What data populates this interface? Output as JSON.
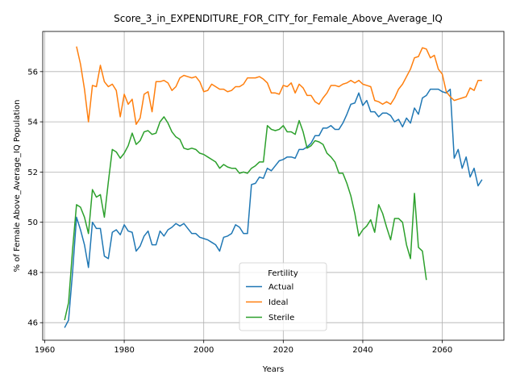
{
  "chart_data": {
    "type": "line",
    "title": "Score_3_in_EXPENDITURE_FOR_CITY_for_Female_Above_Average_IQ",
    "xlabel": "Years",
    "ylabel": "% of Female Above_Average_IQ Population",
    "xlim": [
      1959.5,
      2075.5
    ],
    "ylim": [
      45.3,
      57.6
    ],
    "xticks": [
      1960,
      1980,
      2000,
      2020,
      2040,
      2060
    ],
    "yticks": [
      46,
      48,
      50,
      52,
      54,
      56
    ],
    "grid": true,
    "legend": {
      "title": "Fertility",
      "placement": "bottom-center"
    },
    "series": [
      {
        "name": "Actual",
        "color": "#1f77b4",
        "x": [
          1965,
          1966,
          1967,
          1968,
          1969,
          1970,
          1971,
          1972,
          1973,
          1974,
          1975,
          1976,
          1977,
          1978,
          1979,
          1980,
          1981,
          1982,
          1983,
          1984,
          1985,
          1986,
          1987,
          1988,
          1989,
          1990,
          1991,
          1992,
          1993,
          1994,
          1995,
          1996,
          1997,
          1998,
          1999,
          2000,
          2001,
          2002,
          2003,
          2004,
          2005,
          2006,
          2007,
          2008,
          2009,
          2010,
          2011,
          2012,
          2013,
          2014,
          2015,
          2016,
          2017,
          2018,
          2019,
          2020,
          2021,
          2022,
          2023,
          2024,
          2025,
          2026,
          2027,
          2028,
          2029,
          2030,
          2031,
          2032,
          2033,
          2034,
          2035,
          2036,
          2037,
          2038,
          2039,
          2040,
          2041,
          2042,
          2043,
          2044,
          2045,
          2046,
          2047,
          2048,
          2049,
          2050,
          2051,
          2052,
          2053,
          2054,
          2055,
          2056,
          2057,
          2058,
          2059,
          2060,
          2061,
          2062,
          2063,
          2064,
          2065,
          2066,
          2067,
          2068,
          2069,
          2070
        ],
        "values": [
          45.8,
          46.1,
          48.0,
          50.2,
          49.7,
          49.1,
          48.2,
          50.0,
          49.75,
          49.75,
          48.65,
          48.55,
          49.6,
          49.7,
          49.5,
          49.9,
          49.65,
          49.6,
          48.85,
          49.05,
          49.45,
          49.65,
          49.1,
          49.1,
          49.65,
          49.45,
          49.7,
          49.8,
          49.95,
          49.85,
          49.95,
          49.75,
          49.55,
          49.55,
          49.4,
          49.35,
          49.3,
          49.2,
          49.1,
          48.85,
          49.4,
          49.45,
          49.55,
          49.9,
          49.8,
          49.55,
          49.55,
          51.5,
          51.55,
          51.8,
          51.75,
          52.15,
          52.05,
          52.25,
          52.45,
          52.5,
          52.6,
          52.6,
          52.55,
          52.9,
          52.9,
          53.0,
          53.15,
          53.45,
          53.45,
          53.75,
          53.75,
          53.85,
          53.7,
          53.7,
          53.95,
          54.3,
          54.7,
          54.75,
          55.15,
          54.65,
          54.85,
          54.4,
          54.4,
          54.2,
          54.35,
          54.35,
          54.25,
          54.0,
          54.1,
          53.8,
          54.15,
          53.95,
          54.55,
          54.3,
          54.95,
          55.05,
          55.3,
          55.3,
          55.3,
          55.2,
          55.15,
          55.3,
          52.55,
          52.9,
          52.15,
          52.6,
          51.8,
          52.15,
          51.45,
          51.7
        ]
      },
      {
        "name": "Ideal",
        "color": "#ff7f0e",
        "x": [
          1968,
          1969,
          1970,
          1971,
          1972,
          1973,
          1974,
          1975,
          1976,
          1977,
          1978,
          1979,
          1980,
          1981,
          1982,
          1983,
          1984,
          1985,
          1986,
          1987,
          1988,
          1989,
          1990,
          1991,
          1992,
          1993,
          1994,
          1995,
          1996,
          1997,
          1998,
          1999,
          2000,
          2001,
          2002,
          2003,
          2004,
          2005,
          2006,
          2007,
          2008,
          2009,
          2010,
          2011,
          2012,
          2013,
          2014,
          2015,
          2016,
          2017,
          2018,
          2019,
          2020,
          2021,
          2022,
          2023,
          2024,
          2025,
          2026,
          2027,
          2028,
          2029,
          2030,
          2031,
          2032,
          2033,
          2034,
          2035,
          2036,
          2037,
          2038,
          2039,
          2040,
          2041,
          2042,
          2043,
          2044,
          2045,
          2046,
          2047,
          2048,
          2049,
          2050,
          2051,
          2052,
          2053,
          2054,
          2055,
          2056,
          2057,
          2058,
          2059,
          2060,
          2061,
          2062,
          2063,
          2064,
          2065,
          2066,
          2067,
          2068,
          2069,
          2070
        ],
        "values": [
          57.0,
          56.3,
          55.3,
          54.0,
          55.45,
          55.4,
          56.25,
          55.6,
          55.4,
          55.5,
          55.25,
          54.2,
          55.1,
          54.7,
          54.9,
          53.9,
          54.15,
          55.1,
          55.2,
          54.4,
          55.6,
          55.6,
          55.65,
          55.55,
          55.25,
          55.4,
          55.75,
          55.85,
          55.8,
          55.75,
          55.8,
          55.6,
          55.2,
          55.25,
          55.5,
          55.4,
          55.3,
          55.3,
          55.2,
          55.25,
          55.4,
          55.4,
          55.5,
          55.75,
          55.75,
          55.75,
          55.8,
          55.7,
          55.55,
          55.15,
          55.15,
          55.1,
          55.45,
          55.4,
          55.55,
          55.15,
          55.5,
          55.35,
          55.05,
          55.05,
          54.8,
          54.7,
          54.95,
          55.15,
          55.45,
          55.45,
          55.4,
          55.5,
          55.55,
          55.65,
          55.55,
          55.65,
          55.5,
          55.45,
          55.4,
          54.85,
          54.8,
          54.7,
          54.8,
          54.7,
          54.95,
          55.3,
          55.5,
          55.8,
          56.1,
          56.55,
          56.6,
          56.95,
          56.9,
          56.55,
          56.65,
          56.1,
          55.9,
          55.2,
          55.0,
          54.85,
          54.9,
          54.95,
          55.0,
          55.35,
          55.25,
          55.65,
          55.65
        ]
      },
      {
        "name": "Sterile",
        "color": "#2ca02c",
        "x": [
          1965,
          1966,
          1967,
          1968,
          1969,
          1970,
          1971,
          1972,
          1973,
          1974,
          1975,
          1976,
          1977,
          1978,
          1979,
          1980,
          1981,
          1982,
          1983,
          1984,
          1985,
          1986,
          1987,
          1988,
          1989,
          1990,
          1991,
          1992,
          1993,
          1994,
          1995,
          1996,
          1997,
          1998,
          1999,
          2000,
          2001,
          2002,
          2003,
          2004,
          2005,
          2006,
          2007,
          2008,
          2009,
          2010,
          2011,
          2012,
          2013,
          2014,
          2015,
          2016,
          2017,
          2018,
          2019,
          2020,
          2021,
          2022,
          2023,
          2024,
          2025,
          2026,
          2027,
          2028,
          2029,
          2030,
          2031,
          2032,
          2033,
          2034,
          2035,
          2036,
          2037,
          2038,
          2039,
          2040,
          2041,
          2042,
          2043,
          2044,
          2045,
          2046,
          2047,
          2048,
          2049,
          2050,
          2051,
          2052,
          2053,
          2054,
          2055,
          2056
        ],
        "values": [
          46.1,
          46.8,
          48.9,
          50.7,
          50.6,
          50.2,
          49.55,
          51.3,
          51.0,
          51.1,
          50.2,
          51.6,
          52.9,
          52.8,
          52.55,
          52.75,
          53.05,
          53.55,
          53.1,
          53.25,
          53.6,
          53.65,
          53.5,
          53.55,
          54.0,
          54.2,
          53.95,
          53.6,
          53.4,
          53.3,
          52.95,
          52.9,
          52.95,
          52.9,
          52.75,
          52.7,
          52.6,
          52.5,
          52.4,
          52.15,
          52.3,
          52.2,
          52.15,
          52.15,
          51.95,
          52.0,
          51.95,
          52.15,
          52.25,
          52.4,
          52.4,
          53.85,
          53.7,
          53.65,
          53.7,
          53.85,
          53.6,
          53.6,
          53.5,
          54.05,
          53.6,
          52.95,
          53.05,
          53.25,
          53.2,
          53.1,
          52.75,
          52.6,
          52.4,
          51.95,
          51.95,
          51.55,
          51.05,
          50.35,
          49.45,
          49.7,
          49.85,
          50.1,
          49.6,
          50.7,
          50.35,
          49.8,
          49.3,
          50.15,
          50.15,
          50.0,
          49.1,
          48.55,
          51.15,
          49.0,
          48.85,
          47.7
        ]
      }
    ]
  }
}
